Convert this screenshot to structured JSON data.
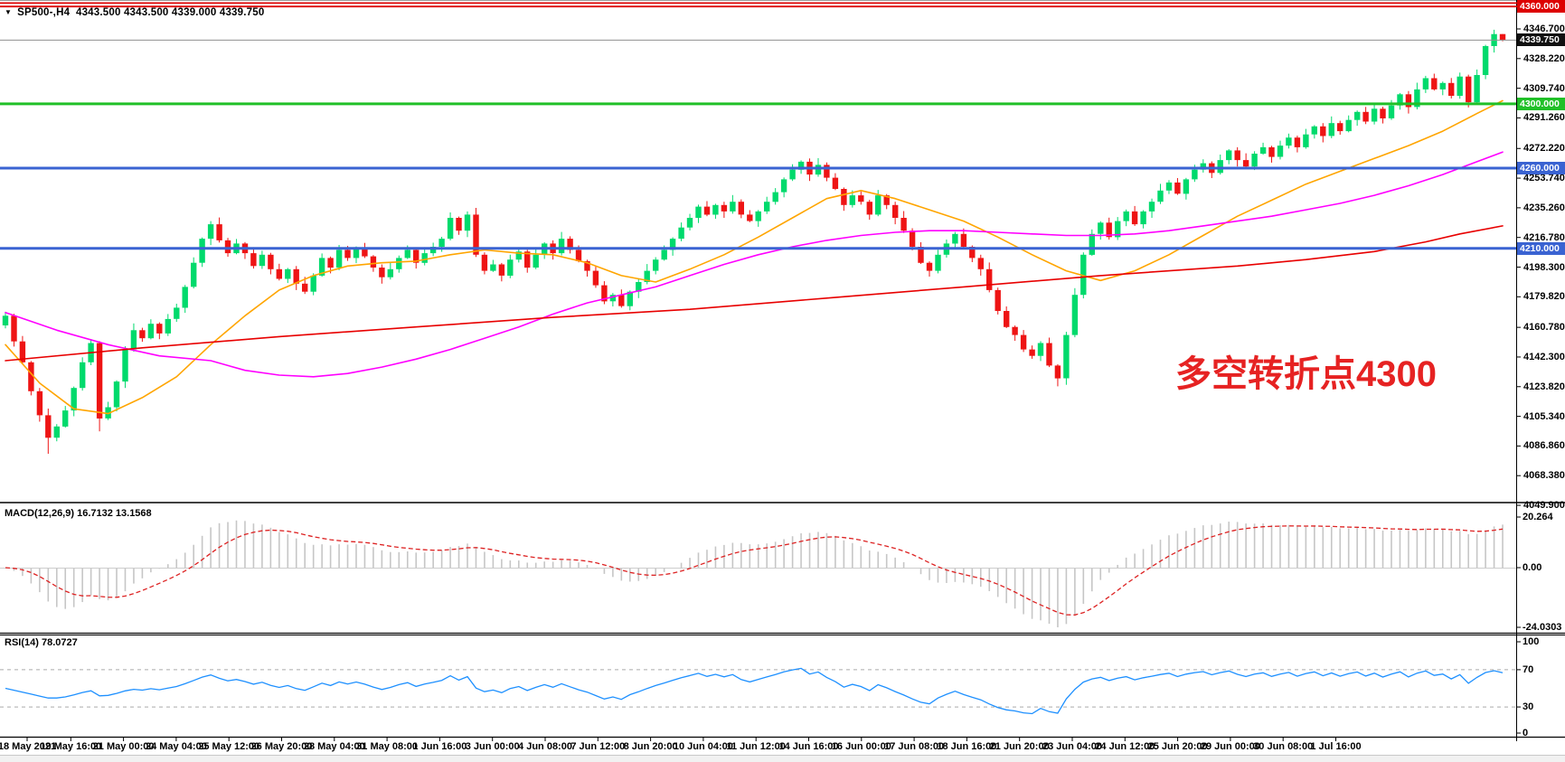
{
  "header": {
    "symbol_period": "SP500-,H4",
    "ohlc": "4343.500 4343.500 4339.000 4339.750"
  },
  "annotation": {
    "text": "多空转折点4300",
    "color": "#e62222"
  },
  "colors": {
    "candle_up": "#00da6c",
    "candle_down": "#ee1414",
    "ma_fast": "#ffa500",
    "ma_mid": "#ff00ff",
    "ma_slow": "#e80000",
    "level_blue": "#3a63d2",
    "level_green": "#20c028",
    "level_red": "#dd0000",
    "current_price_line": "#909090",
    "macd_bar": "#c6c6c6",
    "macd_signal": "#dd2222",
    "rsi_line": "#1e90ff",
    "indicator_grid": "#aaaaaa"
  },
  "price_axis": {
    "ticks": [
      "4346.700",
      "4328.220",
      "4309.740",
      "4291.260",
      "4272.220",
      "4253.740",
      "4235.260",
      "4216.780",
      "4198.300",
      "4179.820",
      "4160.780",
      "4142.300",
      "4123.820",
      "4105.340",
      "4086.860",
      "4068.380",
      "4049.900"
    ],
    "badges": [
      {
        "label": "4360.000",
        "value": 4360,
        "bg": "#dd0000",
        "line": "double"
      },
      {
        "label": "4339.750",
        "value": 4339.75,
        "bg": "#111111",
        "line": "current"
      },
      {
        "label": "4300.000",
        "value": 4300,
        "bg": "#20c028",
        "line": "solid"
      },
      {
        "label": "4260.000",
        "value": 4260,
        "bg": "#3a63d2",
        "line": "solid"
      },
      {
        "label": "4210.000",
        "value": 4210,
        "bg": "#3a63d2",
        "line": "solid"
      }
    ]
  },
  "time_axis": {
    "labels": [
      "18 May 2021",
      "19 May 16:00",
      "21 May 00:00",
      "24 May 04:00",
      "25 May 12:00",
      "26 May 20:00",
      "28 May 04:00",
      "31 May 08:00",
      "1 Jun 16:00",
      "3 Jun 00:00",
      "4 Jun 08:00",
      "7 Jun 12:00",
      "8 Jun 20:00",
      "10 Jun 04:00",
      "11 Jun 12:00",
      "14 Jun 16:00",
      "16 Jun 00:00",
      "17 Jun 08:00",
      "18 Jun 16:00",
      "21 Jun 20:00",
      "23 Jun 04:00",
      "24 Jun 12:00",
      "25 Jun 20:00",
      "29 Jun 00:00",
      "30 Jun 08:00",
      "1 Jul 16:00"
    ]
  },
  "chart_data": {
    "type": "candlestick",
    "symbol": "SP500-",
    "timeframe": "H4",
    "title": "SP500-,H4 4343.500 4343.500 4339.000 4339.750",
    "current_price": 4339.75,
    "last_ohlc": {
      "open": 4343.5,
      "high": 4343.5,
      "low": 4339.0,
      "close": 4339.75
    },
    "ylim": [
      4049.9,
      4364.7
    ],
    "levels": [
      {
        "value": 4360,
        "color": "#dd0000",
        "style": "double-solid"
      },
      {
        "value": 4300,
        "color": "#20c028",
        "style": "solid-3px"
      },
      {
        "value": 4260,
        "color": "#3a63d2",
        "style": "solid-3px"
      },
      {
        "value": 4210,
        "color": "#3a63d2",
        "style": "solid-3px"
      }
    ],
    "closes": [
      4168,
      4152,
      4139,
      4121,
      4106,
      4092,
      4099,
      4109,
      4123,
      4139,
      4151,
      4104,
      4111,
      4127,
      4147,
      4159,
      4154,
      4163,
      4157,
      4166,
      4173,
      4186,
      4201,
      4216,
      4225,
      4215,
      4207,
      4213,
      4207,
      4199,
      4206,
      4197,
      4191,
      4197,
      4188,
      4183,
      4193,
      4204,
      4198,
      4209,
      4204,
      4210,
      4205,
      4198,
      4192,
      4197,
      4204,
      4209,
      4201,
      4207,
      4211,
      4216,
      4229,
      4221,
      4231,
      4206,
      4196,
      4200,
      4193,
      4203,
      4208,
      4198,
      4206,
      4213,
      4207,
      4216,
      4209,
      4202,
      4196,
      4187,
      4177,
      4181,
      4174,
      4183,
      4189,
      4196,
      4203,
      4209,
      4216,
      4223,
      4229,
      4236,
      4231,
      4237,
      4233,
      4239,
      4231,
      4227,
      4233,
      4239,
      4245,
      4253,
      4259,
      4264,
      4256,
      4262,
      4254,
      4247,
      4237,
      4243,
      4239,
      4231,
      4243,
      4237,
      4229,
      4221,
      4211,
      4201,
      4196,
      4206,
      4213,
      4219,
      4211,
      4204,
      4197,
      4184,
      4171,
      4161,
      4156,
      4147,
      4143,
      4151,
      4137,
      4129,
      4156,
      4181,
      4206,
      4219,
      4226,
      4217,
      4227,
      4233,
      4225,
      4233,
      4239,
      4246,
      4251,
      4244,
      4253,
      4259,
      4263,
      4257,
      4265,
      4271,
      4265,
      4261,
      4269,
      4273,
      4267,
      4274,
      4279,
      4273,
      4281,
      4286,
      4280,
      4288,
      4283,
      4290,
      4295,
      4289,
      4297,
      4291,
      4299,
      4306,
      4298,
      4309,
      4316,
      4309,
      4313,
      4305,
      4317,
      4301,
      4318,
      4336,
      4343.5,
      4339.75
    ],
    "wick_up": [
      2.5,
      1.2,
      3.4,
      0.8,
      2.0,
      4.2,
      1.5,
      2.8,
      0.9,
      3.1
    ],
    "wick_dn": [
      1.8,
      3.2,
      1.0,
      2.6,
      4.0,
      1.4,
      2.2,
      0.7,
      3.6,
      1.6
    ],
    "wick_overrides": {
      "5": {
        "low": 4082
      },
      "11": {
        "low": 4096
      },
      "123": {
        "low": 4124
      },
      "174": {
        "high": 4346.2
      },
      "175": {
        "high": 4343.5,
        "low": 4339
      }
    },
    "moving_averages": [
      {
        "name": "ma-fast-orange",
        "color": "#ffa500",
        "points": [
          [
            0,
            4150
          ],
          [
            4,
            4126
          ],
          [
            8,
            4110
          ],
          [
            12,
            4107
          ],
          [
            16,
            4117
          ],
          [
            20,
            4130
          ],
          [
            24,
            4150
          ],
          [
            28,
            4168
          ],
          [
            32,
            4184
          ],
          [
            36,
            4193
          ],
          [
            40,
            4199
          ],
          [
            44,
            4201
          ],
          [
            48,
            4202
          ],
          [
            52,
            4206
          ],
          [
            56,
            4209
          ],
          [
            60,
            4207
          ],
          [
            64,
            4206
          ],
          [
            68,
            4201
          ],
          [
            72,
            4193
          ],
          [
            76,
            4189
          ],
          [
            80,
            4197
          ],
          [
            84,
            4206
          ],
          [
            88,
            4217
          ],
          [
            92,
            4229
          ],
          [
            96,
            4241
          ],
          [
            100,
            4246
          ],
          [
            104,
            4241
          ],
          [
            108,
            4234
          ],
          [
            112,
            4227
          ],
          [
            116,
            4217
          ],
          [
            120,
            4206
          ],
          [
            124,
            4196
          ],
          [
            128,
            4190
          ],
          [
            132,
            4196
          ],
          [
            136,
            4206
          ],
          [
            140,
            4218
          ],
          [
            144,
            4230
          ],
          [
            148,
            4240
          ],
          [
            152,
            4250
          ],
          [
            156,
            4258
          ],
          [
            160,
            4266
          ],
          [
            164,
            4274
          ],
          [
            168,
            4283
          ],
          [
            172,
            4294
          ],
          [
            175,
            4302
          ]
        ]
      },
      {
        "name": "ma-mid-magenta",
        "color": "#ff00ff",
        "points": [
          [
            0,
            4170
          ],
          [
            6,
            4159
          ],
          [
            12,
            4150
          ],
          [
            18,
            4143
          ],
          [
            24,
            4140
          ],
          [
            28,
            4134
          ],
          [
            32,
            4131
          ],
          [
            36,
            4130
          ],
          [
            40,
            4132
          ],
          [
            44,
            4136
          ],
          [
            48,
            4141
          ],
          [
            52,
            4147
          ],
          [
            56,
            4154
          ],
          [
            60,
            4161
          ],
          [
            64,
            4169
          ],
          [
            68,
            4176
          ],
          [
            72,
            4181
          ],
          [
            76,
            4186
          ],
          [
            80,
            4193
          ],
          [
            84,
            4200
          ],
          [
            88,
            4206
          ],
          [
            92,
            4211
          ],
          [
            96,
            4215
          ],
          [
            100,
            4218
          ],
          [
            104,
            4220
          ],
          [
            108,
            4221
          ],
          [
            112,
            4221
          ],
          [
            116,
            4220
          ],
          [
            120,
            4219
          ],
          [
            124,
            4218
          ],
          [
            128,
            4218
          ],
          [
            132,
            4219
          ],
          [
            136,
            4221
          ],
          [
            140,
            4224
          ],
          [
            144,
            4227
          ],
          [
            148,
            4230
          ],
          [
            152,
            4234
          ],
          [
            156,
            4238
          ],
          [
            160,
            4243
          ],
          [
            164,
            4249
          ],
          [
            168,
            4256
          ],
          [
            172,
            4264
          ],
          [
            175,
            4270
          ]
        ]
      },
      {
        "name": "ma-slow-red",
        "color": "#e80000",
        "points": [
          [
            0,
            4140
          ],
          [
            16,
            4148
          ],
          [
            32,
            4155
          ],
          [
            48,
            4161
          ],
          [
            64,
            4167
          ],
          [
            80,
            4172
          ],
          [
            96,
            4179
          ],
          [
            112,
            4186
          ],
          [
            128,
            4193
          ],
          [
            144,
            4199
          ],
          [
            152,
            4203
          ],
          [
            160,
            4208
          ],
          [
            166,
            4214
          ],
          [
            170,
            4219
          ],
          [
            175,
            4224
          ]
        ]
      }
    ],
    "macd": {
      "label": "MACD(12,26,9) 16.7132 13.1568",
      "fast": 12,
      "slow": 26,
      "signal": 9,
      "value": 16.7132,
      "signal_value": 13.1568,
      "axis": [
        {
          "label": "20.264",
          "value": 20.264
        },
        {
          "label": "0.00",
          "value": 0
        },
        {
          "label": "-24.0303",
          "value": -24.0303
        }
      ]
    },
    "rsi": {
      "label": "RSI(14) 78.0727",
      "period": 14,
      "value": 78.0727,
      "levels": [
        70,
        30
      ],
      "axis": [
        {
          "label": "100",
          "value": 100
        },
        {
          "label": "70",
          "value": 70
        },
        {
          "label": "30",
          "value": 30
        },
        {
          "label": "0",
          "value": 0
        }
      ]
    }
  }
}
